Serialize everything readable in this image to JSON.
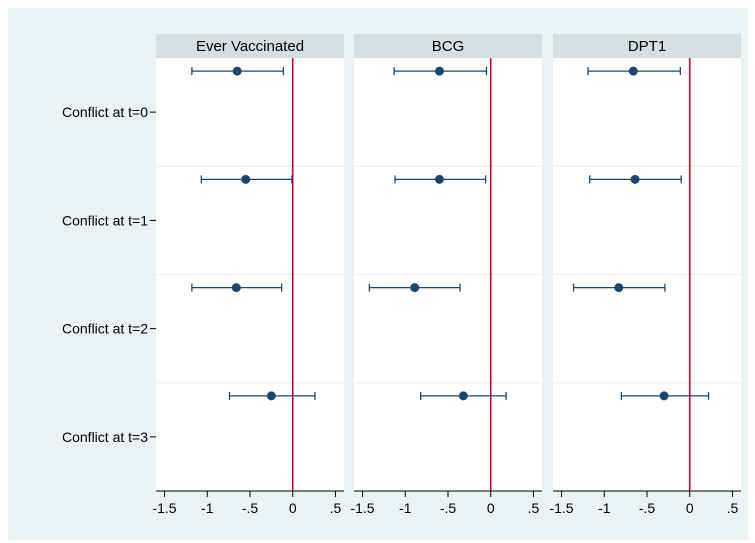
{
  "chart_data": {
    "type": "coefficient-plot",
    "panels": [
      {
        "title": "Ever Vaccinated",
        "points": [
          {
            "category": "Conflict at t=0",
            "estimate": -0.65,
            "ci_low": -1.18,
            "ci_high": -0.11
          },
          {
            "category": "Conflict at t=1",
            "estimate": -0.55,
            "ci_low": -1.07,
            "ci_high": -0.01
          },
          {
            "category": "Conflict at t=2",
            "estimate": -0.66,
            "ci_low": -1.18,
            "ci_high": -0.13
          },
          {
            "category": "Conflict at t=3",
            "estimate": -0.25,
            "ci_low": -0.74,
            "ci_high": 0.26
          }
        ]
      },
      {
        "title": "BCG",
        "points": [
          {
            "category": "Conflict at t=0",
            "estimate": -0.6,
            "ci_low": -1.13,
            "ci_high": -0.05
          },
          {
            "category": "Conflict at t=1",
            "estimate": -0.6,
            "ci_low": -1.12,
            "ci_high": -0.06
          },
          {
            "category": "Conflict at t=2",
            "estimate": -0.89,
            "ci_low": -1.42,
            "ci_high": -0.36
          },
          {
            "category": "Conflict at t=3",
            "estimate": -0.32,
            "ci_low": -0.82,
            "ci_high": 0.18
          }
        ]
      },
      {
        "title": "DPT1",
        "points": [
          {
            "category": "Conflict at t=0",
            "estimate": -0.66,
            "ci_low": -1.19,
            "ci_high": -0.11
          },
          {
            "category": "Conflict at t=1",
            "estimate": -0.64,
            "ci_low": -1.17,
            "ci_high": -0.1
          },
          {
            "category": "Conflict at t=2",
            "estimate": -0.83,
            "ci_low": -1.36,
            "ci_high": -0.29
          },
          {
            "category": "Conflict at t=3",
            "estimate": -0.3,
            "ci_low": -0.8,
            "ci_high": 0.22
          }
        ]
      }
    ],
    "y_categories": [
      "Conflict at t=0",
      "Conflict at t=1",
      "Conflict at t=2",
      "Conflict at t=3"
    ],
    "x_ticks": [
      -1.5,
      -1,
      -0.5,
      0,
      0.5
    ],
    "x_tick_labels": [
      "-1.5",
      "-1",
      "-.5",
      "0",
      ".5"
    ],
    "xlim": [
      -1.6,
      0.6
    ],
    "reference_line_x": 0,
    "grid": "horizontal",
    "colors": {
      "background": "#eaf2f3",
      "panel_header": "#d5dfe2",
      "marker": "#1a476f",
      "reference_line": "#c10534",
      "grid": "#eaf2f3",
      "axis": "#000000"
    }
  }
}
